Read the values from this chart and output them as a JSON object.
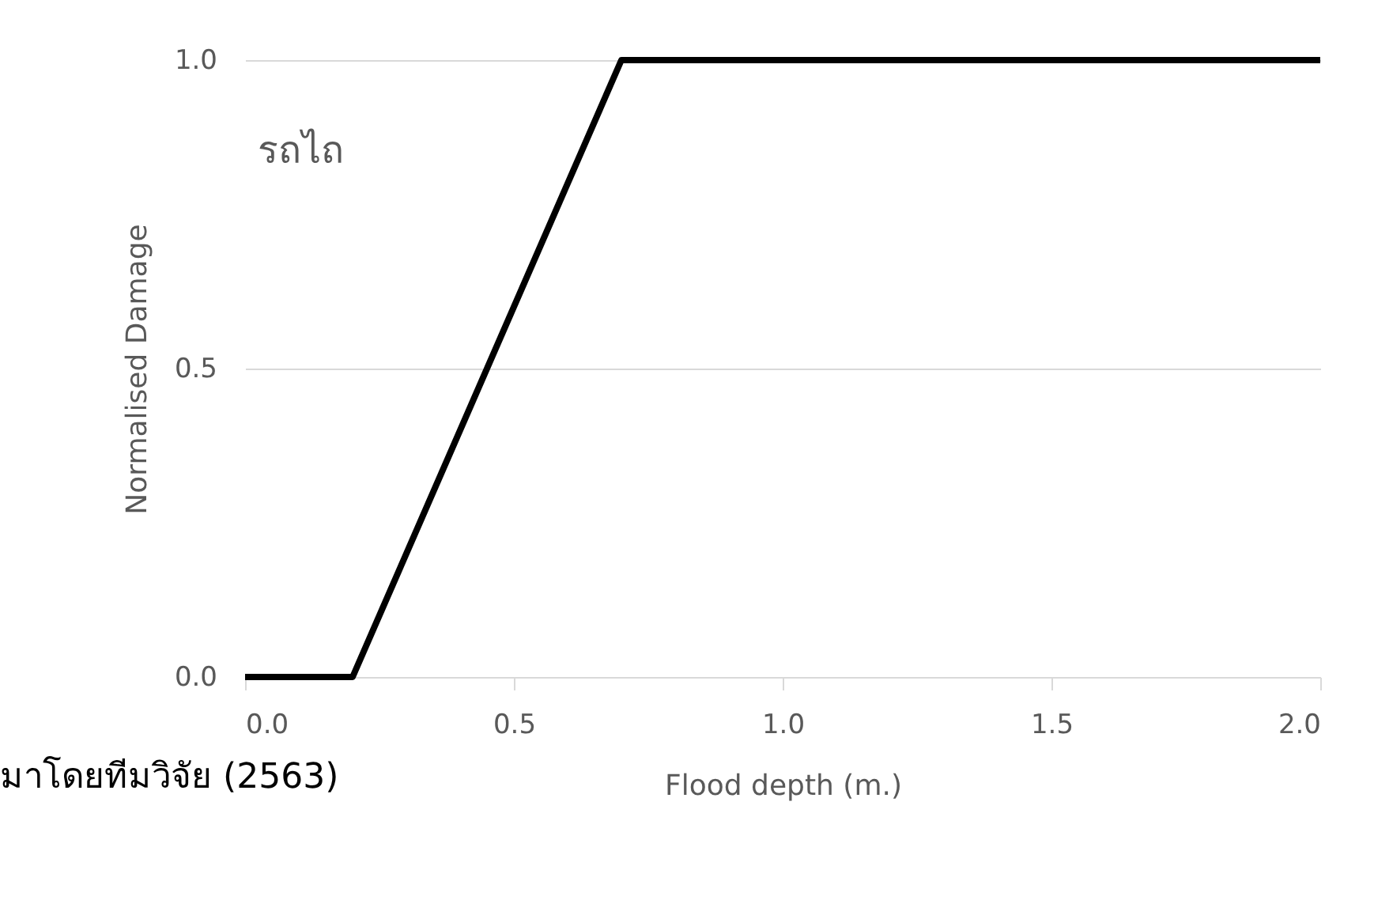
{
  "chart_data": {
    "type": "line",
    "xlabel": "Flood depth (m.)",
    "ylabel": "Normalised Damage",
    "annotations": [
      "รถไถ",
      "มาโดยทีมวิจัย (2563)"
    ],
    "x": [
      0,
      0.2,
      0.7,
      2
    ],
    "series": [
      {
        "color": "#000000",
        "values": [
          0,
          0,
          1,
          1
        ]
      }
    ],
    "xlim": [
      0,
      2
    ],
    "xticks": [
      {
        "value": 0,
        "label": "0.0"
      },
      0.5,
      {
        "value": 1,
        "label": "1.0"
      },
      1.5,
      {
        "value": 2,
        "label": "2.0"
      }
    ],
    "ylim": [
      0,
      1
    ],
    "yticks": [
      {
        "value": 0,
        "label": "0.0"
      },
      0.5,
      {
        "value": 1,
        "label": "1.0"
      }
    ],
    "grid": "y",
    "marker": "none",
    "line_style": "solid"
  }
}
